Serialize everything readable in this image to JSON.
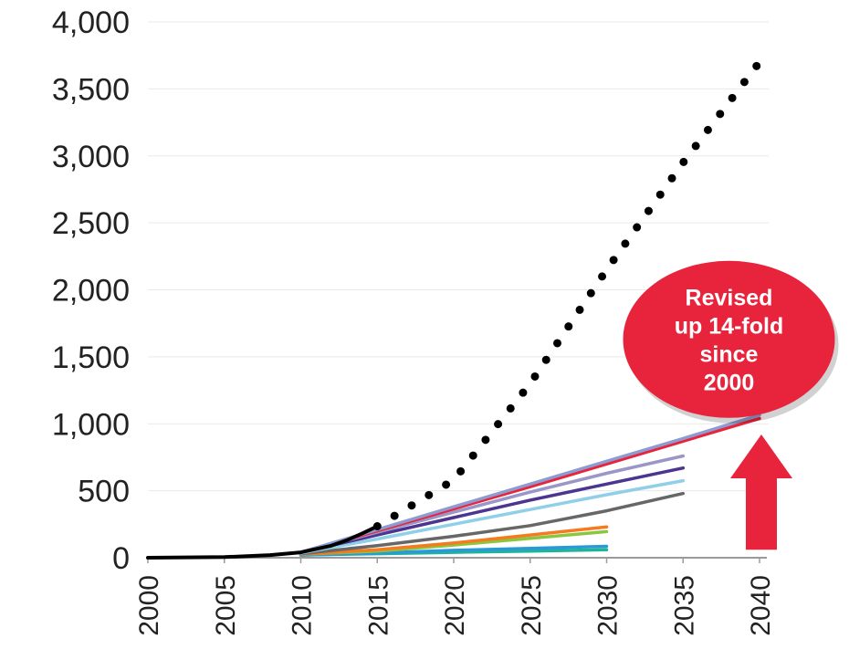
{
  "chart_data": {
    "type": "line",
    "title": "",
    "xlabel": "",
    "ylabel": "",
    "xlim": [
      2000,
      2040
    ],
    "ylim": [
      0,
      4000
    ],
    "grid": true,
    "legend": "none",
    "y_ticks": [
      "0",
      "500",
      "1,000",
      "1,500",
      "2,000",
      "2,500",
      "3,000",
      "3,500",
      "4,000"
    ],
    "y_tick_values": [
      0,
      500,
      1000,
      1500,
      2000,
      2500,
      3000,
      3500,
      4000
    ],
    "x_ticks": [
      "2000",
      "2005",
      "2010",
      "2015",
      "2020",
      "2025",
      "2030",
      "2035",
      "2040"
    ],
    "x_tick_values": [
      2000,
      2005,
      2010,
      2015,
      2020,
      2025,
      2030,
      2035,
      2040
    ],
    "series": [
      {
        "style": "solid",
        "color": "#000000",
        "x": [
          2000,
          2005,
          2008,
          2010,
          2012,
          2013,
          2014,
          2015
        ],
        "y": [
          0,
          5,
          20,
          40,
          90,
          130,
          180,
          235
        ]
      },
      {
        "style": "dotted",
        "color": "#000000",
        "x": [
          2015,
          2020,
          2025,
          2030,
          2035,
          2040
        ],
        "y": [
          235,
          580,
          1300,
          2150,
          2950,
          3700
        ]
      },
      {
        "style": "solid",
        "color": "#8e9bd0",
        "x": [
          2010,
          2015,
          2020,
          2025,
          2030,
          2035,
          2040
        ],
        "y": [
          40,
          210,
          380,
          550,
          720,
          890,
          1065
        ]
      },
      {
        "style": "solid",
        "color": "#e8243d",
        "x": [
          2010,
          2015,
          2020,
          2025,
          2030,
          2035,
          2040
        ],
        "y": [
          40,
          200,
          365,
          530,
          700,
          870,
          1040
        ]
      },
      {
        "style": "solid",
        "color": "#9a96c8",
        "x": [
          2010,
          2015,
          2020,
          2025,
          2030,
          2035
        ],
        "y": [
          40,
          190,
          340,
          490,
          630,
          760
        ]
      },
      {
        "style": "solid",
        "color": "#4b3590",
        "x": [
          2010,
          2015,
          2020,
          2025,
          2030,
          2035
        ],
        "y": [
          40,
          170,
          300,
          430,
          550,
          670
        ]
      },
      {
        "style": "solid",
        "color": "#8fd0e8",
        "x": [
          2010,
          2015,
          2020,
          2025,
          2030,
          2035
        ],
        "y": [
          35,
          140,
          250,
          360,
          470,
          575
        ]
      },
      {
        "style": "solid",
        "color": "#676767",
        "x": [
          2010,
          2015,
          2020,
          2025,
          2030,
          2035
        ],
        "y": [
          30,
          90,
          160,
          240,
          350,
          480
        ]
      },
      {
        "style": "solid",
        "color": "#f47b20",
        "x": [
          2010,
          2015,
          2020,
          2025,
          2030
        ],
        "y": [
          25,
          60,
          110,
          170,
          230
        ]
      },
      {
        "style": "solid",
        "color": "#8cc63f",
        "x": [
          2010,
          2015,
          2020,
          2025,
          2030
        ],
        "y": [
          25,
          50,
          95,
          145,
          195
        ]
      },
      {
        "style": "solid",
        "color": "#2a9ad6",
        "x": [
          2010,
          2015,
          2020,
          2025,
          2030
        ],
        "y": [
          20,
          35,
          55,
          70,
          85
        ]
      },
      {
        "style": "solid",
        "color": "#1fb39a",
        "x": [
          2010,
          2015,
          2020,
          2025,
          2030
        ],
        "y": [
          20,
          30,
          40,
          50,
          60
        ]
      }
    ],
    "annotations": [
      {
        "text_lines": [
          "Revised",
          "up 14-fold",
          "since",
          "2000"
        ],
        "shape": "ellipse",
        "color": "#e8243d",
        "x": 2038,
        "y": 1630
      },
      {
        "shape": "up-arrow",
        "color": "#e8243d",
        "x": 2040,
        "y_from": 60,
        "y_to": 920
      }
    ]
  }
}
